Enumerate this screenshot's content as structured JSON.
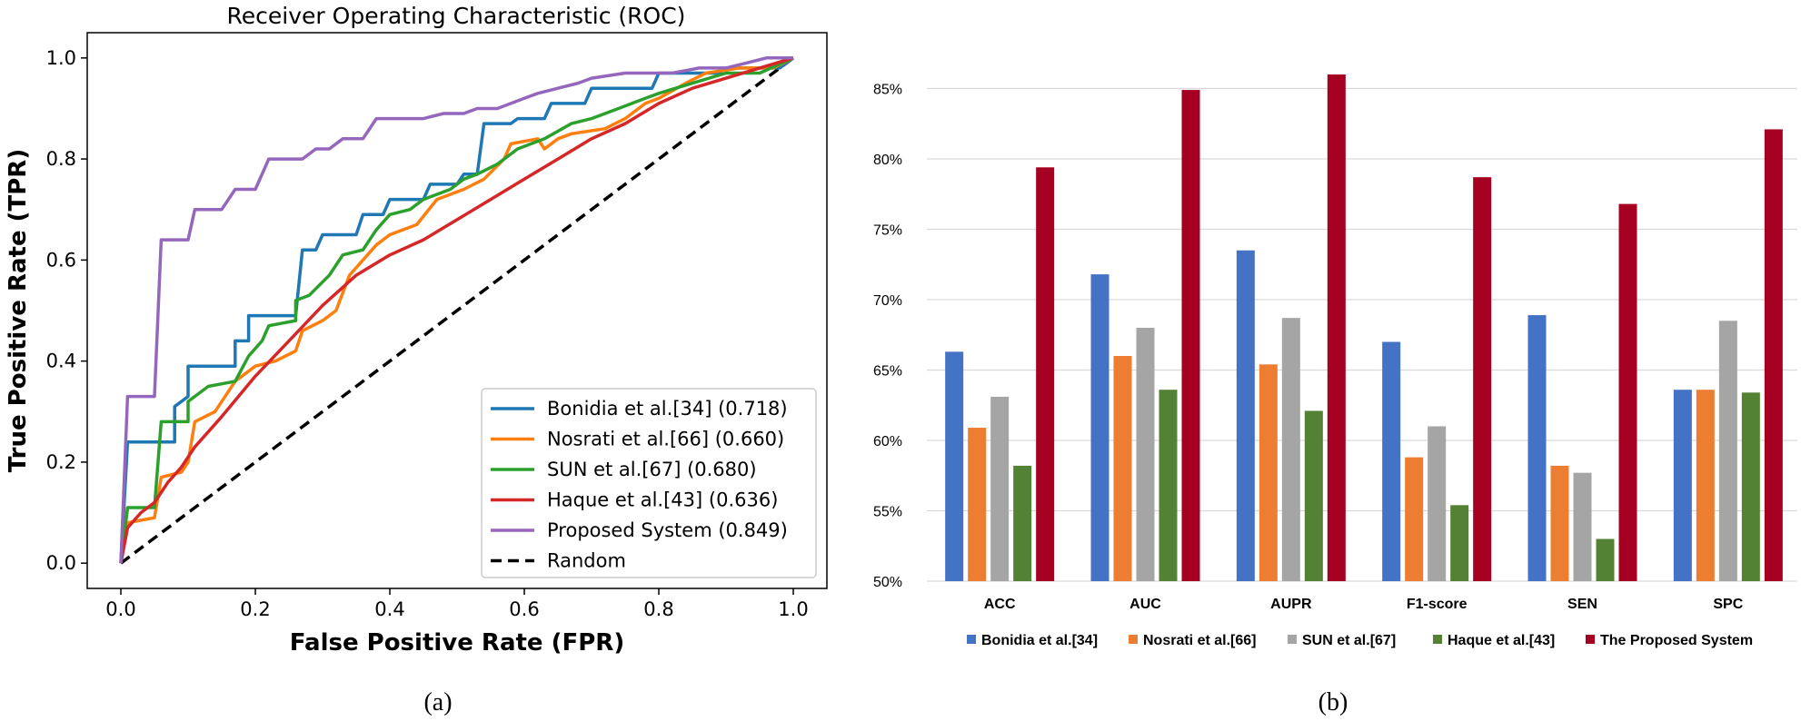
{
  "chart_data": [
    {
      "type": "line",
      "title": "Receiver Operating Characteristic (ROC)",
      "xlabel": "False Positive Rate (FPR)",
      "ylabel": "True Positive Rate (TPR)",
      "xlim": [
        -0.05,
        1.05
      ],
      "ylim": [
        -0.05,
        1.05
      ],
      "xticks": [
        "0.0",
        "0.2",
        "0.4",
        "0.6",
        "0.8",
        "1.0"
      ],
      "yticks": [
        "0.0",
        "0.2",
        "0.4",
        "0.6",
        "0.8",
        "1.0"
      ],
      "grid": false,
      "legend_position": "lower-right",
      "series": [
        {
          "name": "Bonidia et al.[34] (0.718)",
          "color": "#1f77b4",
          "dash": false,
          "points": [
            [
              0,
              0
            ],
            [
              0.01,
              0.24
            ],
            [
              0.08,
              0.24
            ],
            [
              0.08,
              0.31
            ],
            [
              0.1,
              0.33
            ],
            [
              0.1,
              0.39
            ],
            [
              0.17,
              0.39
            ],
            [
              0.17,
              0.44
            ],
            [
              0.19,
              0.44
            ],
            [
              0.19,
              0.49
            ],
            [
              0.26,
              0.49
            ],
            [
              0.27,
              0.62
            ],
            [
              0.29,
              0.62
            ],
            [
              0.3,
              0.65
            ],
            [
              0.35,
              0.65
            ],
            [
              0.36,
              0.69
            ],
            [
              0.39,
              0.69
            ],
            [
              0.4,
              0.72
            ],
            [
              0.45,
              0.72
            ],
            [
              0.46,
              0.75
            ],
            [
              0.5,
              0.75
            ],
            [
              0.51,
              0.77
            ],
            [
              0.53,
              0.77
            ],
            [
              0.54,
              0.87
            ],
            [
              0.58,
              0.87
            ],
            [
              0.59,
              0.88
            ],
            [
              0.63,
              0.88
            ],
            [
              0.64,
              0.91
            ],
            [
              0.69,
              0.91
            ],
            [
              0.7,
              0.94
            ],
            [
              0.79,
              0.94
            ],
            [
              0.8,
              0.97
            ],
            [
              0.89,
              0.97
            ],
            [
              0.9,
              0.98
            ],
            [
              0.98,
              0.98
            ],
            [
              1.0,
              1.0
            ]
          ]
        },
        {
          "name": "Nosrati et al.[66] (0.660)",
          "color": "#ff7f0e",
          "dash": false,
          "points": [
            [
              0,
              0
            ],
            [
              0.01,
              0.08
            ],
            [
              0.05,
              0.09
            ],
            [
              0.06,
              0.17
            ],
            [
              0.09,
              0.18
            ],
            [
              0.1,
              0.2
            ],
            [
              0.11,
              0.28
            ],
            [
              0.14,
              0.3
            ],
            [
              0.17,
              0.36
            ],
            [
              0.2,
              0.39
            ],
            [
              0.23,
              0.4
            ],
            [
              0.26,
              0.42
            ],
            [
              0.27,
              0.46
            ],
            [
              0.3,
              0.48
            ],
            [
              0.32,
              0.5
            ],
            [
              0.34,
              0.57
            ],
            [
              0.38,
              0.63
            ],
            [
              0.4,
              0.65
            ],
            [
              0.44,
              0.67
            ],
            [
              0.47,
              0.72
            ],
            [
              0.51,
              0.74
            ],
            [
              0.54,
              0.76
            ],
            [
              0.57,
              0.8
            ],
            [
              0.58,
              0.83
            ],
            [
              0.62,
              0.84
            ],
            [
              0.63,
              0.82
            ],
            [
              0.65,
              0.84
            ],
            [
              0.67,
              0.85
            ],
            [
              0.72,
              0.86
            ],
            [
              0.75,
              0.88
            ],
            [
              0.78,
              0.91
            ],
            [
              0.8,
              0.92
            ],
            [
              0.84,
              0.95
            ],
            [
              0.87,
              0.97
            ],
            [
              0.92,
              0.98
            ],
            [
              0.97,
              0.98
            ],
            [
              1.0,
              1.0
            ]
          ]
        },
        {
          "name": "SUN et al.[67] (0.680)",
          "color": "#2ca02c",
          "dash": false,
          "points": [
            [
              0,
              0
            ],
            [
              0.01,
              0.11
            ],
            [
              0.05,
              0.11
            ],
            [
              0.06,
              0.28
            ],
            [
              0.1,
              0.28
            ],
            [
              0.1,
              0.32
            ],
            [
              0.13,
              0.35
            ],
            [
              0.17,
              0.36
            ],
            [
              0.19,
              0.41
            ],
            [
              0.21,
              0.44
            ],
            [
              0.22,
              0.47
            ],
            [
              0.26,
              0.48
            ],
            [
              0.26,
              0.52
            ],
            [
              0.28,
              0.53
            ],
            [
              0.31,
              0.57
            ],
            [
              0.33,
              0.61
            ],
            [
              0.36,
              0.62
            ],
            [
              0.38,
              0.66
            ],
            [
              0.4,
              0.69
            ],
            [
              0.43,
              0.7
            ],
            [
              0.45,
              0.72
            ],
            [
              0.49,
              0.74
            ],
            [
              0.51,
              0.76
            ],
            [
              0.53,
              0.77
            ],
            [
              0.56,
              0.79
            ],
            [
              0.59,
              0.82
            ],
            [
              0.63,
              0.84
            ],
            [
              0.67,
              0.87
            ],
            [
              0.7,
              0.88
            ],
            [
              0.74,
              0.9
            ],
            [
              0.78,
              0.92
            ],
            [
              0.8,
              0.93
            ],
            [
              0.85,
              0.95
            ],
            [
              0.9,
              0.97
            ],
            [
              0.95,
              0.97
            ],
            [
              1.0,
              1.0
            ]
          ]
        },
        {
          "name": "Haque et al.[43] (0.636)",
          "color": "#d62728",
          "dash": false,
          "points": [
            [
              0,
              0
            ],
            [
              0.01,
              0.07
            ],
            [
              0.03,
              0.1
            ],
            [
              0.05,
              0.12
            ],
            [
              0.07,
              0.16
            ],
            [
              0.09,
              0.19
            ],
            [
              0.11,
              0.23
            ],
            [
              0.15,
              0.29
            ],
            [
              0.2,
              0.37
            ],
            [
              0.25,
              0.44
            ],
            [
              0.3,
              0.51
            ],
            [
              0.35,
              0.57
            ],
            [
              0.4,
              0.61
            ],
            [
              0.45,
              0.64
            ],
            [
              0.5,
              0.68
            ],
            [
              0.55,
              0.72
            ],
            [
              0.6,
              0.76
            ],
            [
              0.65,
              0.8
            ],
            [
              0.7,
              0.84
            ],
            [
              0.75,
              0.87
            ],
            [
              0.8,
              0.91
            ],
            [
              0.85,
              0.94
            ],
            [
              0.9,
              0.96
            ],
            [
              0.95,
              0.98
            ],
            [
              1.0,
              1.0
            ]
          ]
        },
        {
          "name": "Proposed System (0.849)",
          "color": "#9467bd",
          "dash": false,
          "points": [
            [
              0,
              0
            ],
            [
              0.01,
              0.33
            ],
            [
              0.05,
              0.33
            ],
            [
              0.06,
              0.64
            ],
            [
              0.1,
              0.64
            ],
            [
              0.11,
              0.7
            ],
            [
              0.15,
              0.7
            ],
            [
              0.17,
              0.74
            ],
            [
              0.2,
              0.74
            ],
            [
              0.22,
              0.8
            ],
            [
              0.27,
              0.8
            ],
            [
              0.29,
              0.82
            ],
            [
              0.31,
              0.82
            ],
            [
              0.33,
              0.84
            ],
            [
              0.36,
              0.84
            ],
            [
              0.38,
              0.88
            ],
            [
              0.45,
              0.88
            ],
            [
              0.48,
              0.89
            ],
            [
              0.51,
              0.89
            ],
            [
              0.53,
              0.9
            ],
            [
              0.56,
              0.9
            ],
            [
              0.58,
              0.91
            ],
            [
              0.6,
              0.92
            ],
            [
              0.62,
              0.93
            ],
            [
              0.65,
              0.94
            ],
            [
              0.68,
              0.95
            ],
            [
              0.7,
              0.96
            ],
            [
              0.75,
              0.97
            ],
            [
              0.82,
              0.97
            ],
            [
              0.86,
              0.98
            ],
            [
              0.9,
              0.98
            ],
            [
              0.93,
              0.99
            ],
            [
              0.96,
              1.0
            ],
            [
              1.0,
              1.0
            ]
          ]
        },
        {
          "name": "Random",
          "color": "#000000",
          "dash": true,
          "points": [
            [
              0,
              0
            ],
            [
              1,
              1
            ]
          ]
        }
      ]
    },
    {
      "type": "bar",
      "categories": [
        "ACC",
        "AUC",
        "AUPR",
        "F1-score",
        "SEN",
        "SPC"
      ],
      "ylim": [
        50,
        87
      ],
      "yticks": [
        "50%",
        "55%",
        "60%",
        "65%",
        "70%",
        "75%",
        "80%",
        "85%"
      ],
      "grid": true,
      "legend_position": "bottom",
      "series": [
        {
          "name": "Bonidia et al.[34]",
          "color": "#4472c4",
          "values": [
            66.3,
            71.8,
            73.5,
            67.0,
            68.9,
            63.6
          ]
        },
        {
          "name": "Nosrati et al.[66]",
          "color": "#ed7d31",
          "values": [
            60.9,
            66.0,
            65.4,
            58.8,
            58.2,
            63.6
          ]
        },
        {
          "name": "SUN et al.[67]",
          "color": "#a5a5a5",
          "values": [
            63.1,
            68.0,
            68.7,
            61.0,
            57.7,
            68.5
          ]
        },
        {
          "name": "Haque et al.[43]",
          "color": "#548235",
          "values": [
            58.2,
            63.6,
            62.1,
            55.4,
            53.0,
            63.4
          ]
        },
        {
          "name": "The Proposed System",
          "color": "#a50021",
          "values": [
            79.4,
            84.9,
            86.0,
            78.7,
            76.8,
            82.1
          ]
        }
      ]
    }
  ],
  "captions": {
    "left": "(a)",
    "right": "(b)"
  }
}
